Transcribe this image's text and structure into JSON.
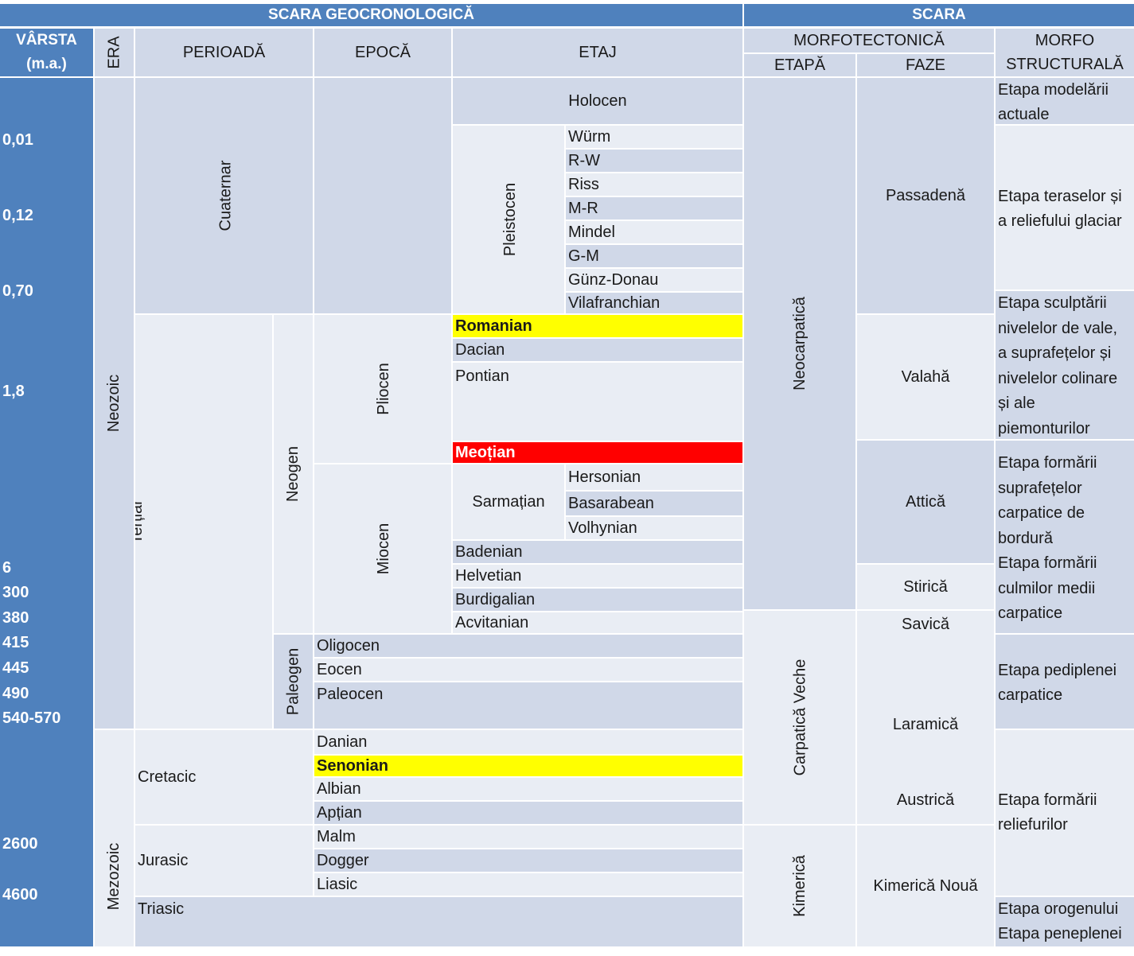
{
  "header": {
    "scara_geo": "SCARA GEOCRONOLOGICĂ",
    "scara": "SCARA",
    "varsta_line1": "VÂRSTA",
    "varsta_line2": "(m.a.)",
    "era": "ERA",
    "perioada": "PERIOADĂ",
    "epoca": "EPOCĂ",
    "etaj": "ETAJ",
    "morfotectonica": "MORFOTECTONICĂ",
    "etapa": "ETAPĂ",
    "faze": "FAZE",
    "morfo_line1": "MORFO",
    "morfo_line2": "STRUCTURALĂ"
  },
  "ages": [
    "0,01",
    "0,12",
    "0,70",
    "1,8",
    "6",
    "300",
    "380",
    "415",
    "445",
    "490",
    "540-570",
    "2600",
    "4600"
  ],
  "era": {
    "neozoic": "Neozoic",
    "mezozoic": "Mezozoic"
  },
  "perioada": {
    "cuaternar": "Cuaternar",
    "tertiar": "Terțiar",
    "neogen": "Neogen",
    "paleogen": "Paleogen",
    "cretacic": "Cretacic",
    "jurasic": "Jurasic",
    "triasic": "Triasic"
  },
  "epoca": {
    "pleistocen": "Pleistocen",
    "pliocen": "Pliocen",
    "miocen": "Miocen",
    "sarmatian": "Sarmațian"
  },
  "etaj": {
    "holocen": "Holocen",
    "pleistocen_stages": [
      "Würm",
      "R-W",
      "Riss",
      "M-R",
      "Mindel",
      "G-M",
      "Günz-Donau",
      "Vilafranchian"
    ],
    "romanian": "Romanian",
    "dacian": "Dacian",
    "pontian": "Pontian",
    "meotian": "Meoțian",
    "sarmatian_stages": [
      "Hersonian",
      "Basarabean",
      "Volhynian"
    ],
    "badenian": "Badenian",
    "helvetian": "Helvetian",
    "burdigalian": "Burdigalian",
    "acvitanian": "Acvitanian",
    "oligocen": "Oligocen",
    "eocen": "Eocen",
    "paleocen": "Paleocen",
    "danian": "Danian",
    "senonian": "Senonian",
    "albian": "Albian",
    "aptian": "Apțian",
    "malm": "Malm",
    "dogger": "Dogger",
    "liasic": "Liasic"
  },
  "etapa": {
    "neocarpatica": "Neocarpatică",
    "carpatica_veche": "Carpatică Veche",
    "kimerica": "Kimerică"
  },
  "faze": {
    "passadena": "Passadenă",
    "valaha": "Valahă",
    "attica": "Attică",
    "stirica": "Stirică",
    "savica": "Savică",
    "laramica": "Laramică",
    "austrica": "Austrică",
    "kimerica_noua": "Kimerică Nouă"
  },
  "morfo": {
    "m1": [
      "Etapa modelării",
      "actuale"
    ],
    "m2": [
      "Etapa teraselor și",
      "a reliefului glaciar"
    ],
    "m3": [
      "Etapa sculptării",
      "nivelelor de vale,",
      "a suprafețelor și",
      "nivelelor colinare",
      "și ale",
      "piemonturilor"
    ],
    "m4": [
      "Etapa formării",
      "suprafețelor",
      "carpatice de",
      "bordură",
      "Etapa formării",
      "culmilor medii",
      "carpatice"
    ],
    "m5": [
      "Etapa pediplenei",
      "carpatice"
    ],
    "m6": [
      "Etapa formării",
      "reliefurilor"
    ],
    "m7": [
      "Etapa orogenului",
      "Etapa peneplenei"
    ]
  },
  "colors": {
    "header": "#4f81bd",
    "cell_dark": "#d0d8e8",
    "cell_light": "#e9edf4",
    "highlight_yellow": "#ffff00",
    "highlight_red": "#ff0000"
  }
}
